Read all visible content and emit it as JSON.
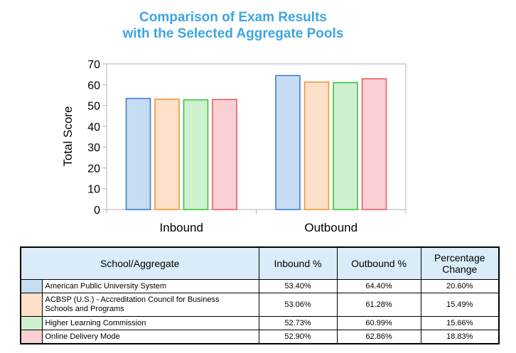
{
  "chart_data": {
    "type": "bar",
    "title_lines": [
      "Comparison of Exam Results",
      "with the Selected Aggregate Pools"
    ],
    "xlabel": "",
    "ylabel": "Total Score",
    "ylim": [
      0,
      70
    ],
    "yticks": [
      0,
      10,
      20,
      30,
      40,
      50,
      60,
      70
    ],
    "grid": false,
    "categories": [
      "Inbound",
      "Outbound"
    ],
    "series": [
      {
        "name": "American Public University System",
        "values": [
          53.4,
          64.4
        ],
        "fill": "#c6dcf3",
        "stroke": "#3f7fd1"
      },
      {
        "name": "ACBSP (U.S.) - Accreditation Council for Business Schools and Programs",
        "values": [
          53.06,
          61.28
        ],
        "fill": "#fde0c7",
        "stroke": "#f2963a"
      },
      {
        "name": "Higher Learning Commission",
        "values": [
          52.73,
          60.99
        ],
        "fill": "#cdf1cf",
        "stroke": "#3cc43c"
      },
      {
        "name": "Online Delivery Mode",
        "values": [
          52.9,
          62.86
        ],
        "fill": "#fbd0d2",
        "stroke": "#ee5d65"
      }
    ]
  },
  "table": {
    "headers": {
      "school": "School/Aggregate",
      "inbound": "Inbound %",
      "outbound": "Outbound %",
      "change_line1": "Percentage",
      "change_line2": "Change"
    },
    "rows": [
      {
        "name": "American Public University System",
        "inbound": "53.40%",
        "outbound": "64.40%",
        "change": "20.60%",
        "color": "#c6dcf3"
      },
      {
        "name_line1": "ACBSP (U.S.) - Accreditation Council for Business",
        "name_line2": "Schools and Programs",
        "inbound": "53.06%",
        "outbound": "61.28%",
        "change": "15.49%",
        "color": "#fde0c7"
      },
      {
        "name": "Higher Learning Commission",
        "inbound": "52.73%",
        "outbound": "60.99%",
        "change": "15.66%",
        "color": "#cdf1cf"
      },
      {
        "name": "Online Delivery Mode",
        "inbound": "52.90%",
        "outbound": "62.86%",
        "change": "18.83%",
        "color": "#fbd0d2"
      }
    ]
  }
}
